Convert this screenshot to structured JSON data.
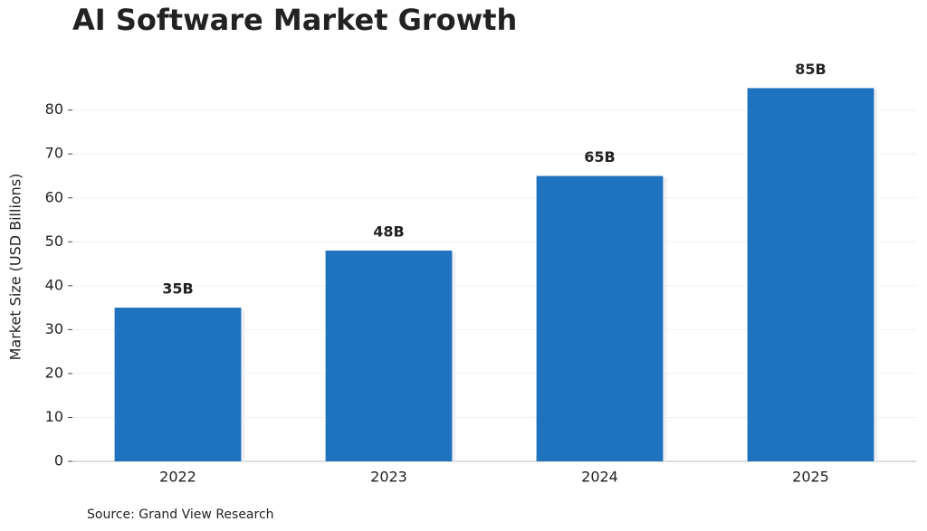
{
  "chart_data": {
    "type": "bar",
    "title": "AI Software Market Growth",
    "y_label": "Market Size (USD Billions)",
    "source": "Source: Grand View Research",
    "categories": [
      "2022",
      "2023",
      "2024",
      "2025"
    ],
    "values": [
      35,
      48,
      65,
      85
    ],
    "value_labels": [
      "35B",
      "48B",
      "65B",
      "85B"
    ],
    "color": "#1f72bd",
    "ylim": [
      0,
      89
    ],
    "yticks": [
      0,
      10,
      20,
      30,
      40,
      50,
      60,
      70,
      80
    ],
    "grid": true
  }
}
